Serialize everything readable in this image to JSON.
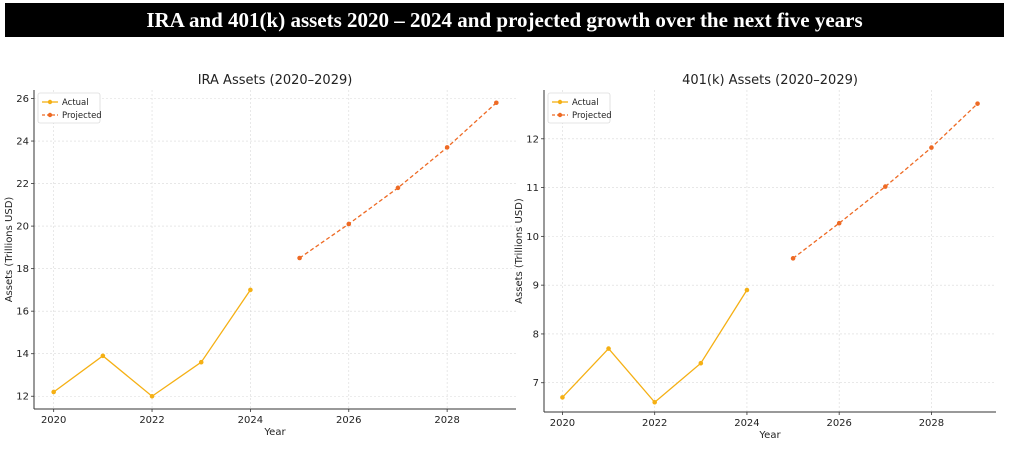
{
  "banner": {
    "title": "IRA and 401(k) assets 2020 – 2024 and projected growth over the next five years"
  },
  "colors": {
    "actual": "#f5b014",
    "projected": "#ee6a24",
    "grid": "#d9d9d9",
    "axis": "#333333"
  },
  "chart_data": [
    {
      "type": "line",
      "title": "IRA Assets (2020–2029)",
      "xlabel": "Year",
      "ylabel": "Assets (Trillions USD)",
      "xlim": [
        2019.6,
        2029.4
      ],
      "ylim": [
        11.4,
        26.4
      ],
      "xticks": [
        2020,
        2022,
        2024,
        2026,
        2028
      ],
      "yticks": [
        12,
        14,
        16,
        18,
        20,
        22,
        24,
        26
      ],
      "grid": true,
      "legend_position": "top-left",
      "series": [
        {
          "name": "Actual",
          "style": "solid",
          "x": [
            2020,
            2021,
            2022,
            2023,
            2024
          ],
          "y": [
            12.2,
            13.9,
            12.0,
            13.6,
            17.0
          ]
        },
        {
          "name": "Projected",
          "style": "dashed",
          "x": [
            2025,
            2026,
            2027,
            2028,
            2029
          ],
          "y": [
            18.5,
            20.1,
            21.8,
            23.7,
            25.8
          ]
        }
      ]
    },
    {
      "type": "line",
      "title": "401(k) Assets (2020–2029)",
      "xlabel": "Year",
      "ylabel": "Assets (Trillions USD)",
      "xlim": [
        2019.6,
        2029.4
      ],
      "ylim": [
        6.4,
        13.0
      ],
      "xticks": [
        2020,
        2022,
        2024,
        2026,
        2028
      ],
      "yticks": [
        7,
        8,
        9,
        10,
        11,
        12
      ],
      "grid": true,
      "legend_position": "top-left",
      "series": [
        {
          "name": "Actual",
          "style": "solid",
          "x": [
            2020,
            2021,
            2022,
            2023,
            2024
          ],
          "y": [
            6.7,
            7.7,
            6.6,
            7.4,
            8.9
          ]
        },
        {
          "name": "Projected",
          "style": "dashed",
          "x": [
            2025,
            2026,
            2027,
            2028,
            2029
          ],
          "y": [
            9.55,
            10.27,
            11.02,
            11.82,
            12.72
          ]
        }
      ]
    }
  ]
}
